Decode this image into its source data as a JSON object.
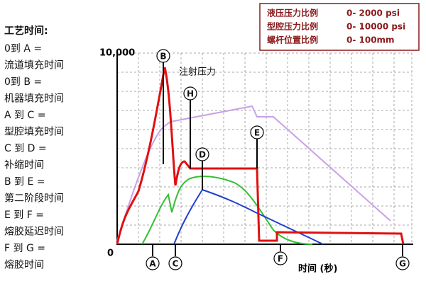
{
  "process_times": {
    "title": "工艺时间:",
    "items": [
      "0到 A =",
      "流道填充时间",
      "0到 B =",
      "机器填充时间",
      "A 到 C =",
      "型腔填充时间",
      "C 到 D =",
      "补缩时间",
      "B 到 E =",
      "第二阶段时间",
      "E 到 F =",
      "熔胶延迟时间",
      "F 到 G =",
      "熔胶时间"
    ]
  },
  "legend": {
    "rows": [
      {
        "label": "液压压力比例",
        "range": "0- 2000 psi"
      },
      {
        "label": "型腔压力比例",
        "range": "0- 10000 psi"
      },
      {
        "label": "螺杆位置比例",
        "range": "0- 100mm"
      }
    ]
  },
  "axis": {
    "y_top_label": "10,000",
    "y_origin_label": "0",
    "x_label": "时间 (秒)"
  },
  "annotation": "注射压力",
  "markers": {
    "A": "A",
    "B": "B",
    "C": "C",
    "D": "D",
    "E": "E",
    "F": "F",
    "G": "G",
    "H": "H"
  }
}
